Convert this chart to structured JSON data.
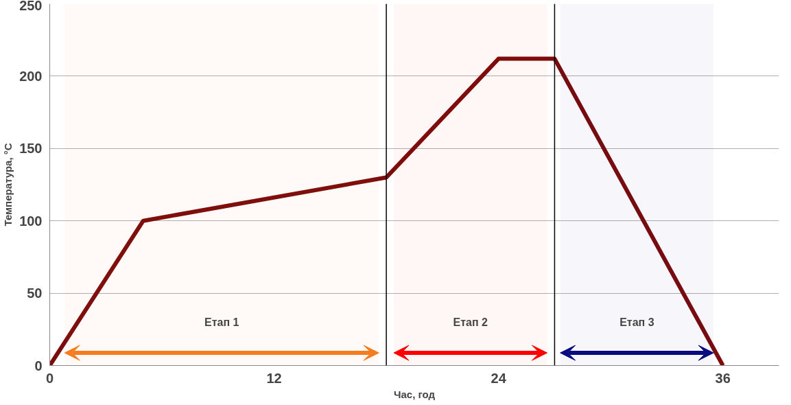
{
  "chart_data": {
    "type": "line",
    "xlabel": "Час, год",
    "ylabel": "Температура, °C",
    "x": [
      0,
      5,
      18,
      24,
      27,
      36
    ],
    "series": [
      {
        "color": "#7b0c0c",
        "values": [
          0,
          100,
          130,
          212,
          212,
          0
        ]
      }
    ],
    "xlim": [
      0,
      39
    ],
    "xticks": [
      0,
      12,
      24,
      36
    ],
    "ylim": [
      0,
      250
    ],
    "yticks": [
      0,
      50,
      100,
      150,
      200,
      250
    ],
    "grid": "y",
    "marker": "none",
    "line_style": "solid",
    "ref_lines": [
      {
        "axis": "x",
        "value": 18,
        "color": "#000000"
      },
      {
        "axis": "x",
        "value": 27,
        "color": "#000000"
      }
    ],
    "bands": [
      {
        "axis": "x",
        "from": 0.8,
        "to": 17.6,
        "label": "Етап 1",
        "color": "#f57c1f"
      },
      {
        "axis": "x",
        "from": 18.4,
        "to": 26.6,
        "label": "Етап 2",
        "color": "#ff0000"
      },
      {
        "axis": "x",
        "from": 27.3,
        "to": 35.5,
        "label": "Етап 3",
        "color": "#0a0a80"
      }
    ]
  }
}
